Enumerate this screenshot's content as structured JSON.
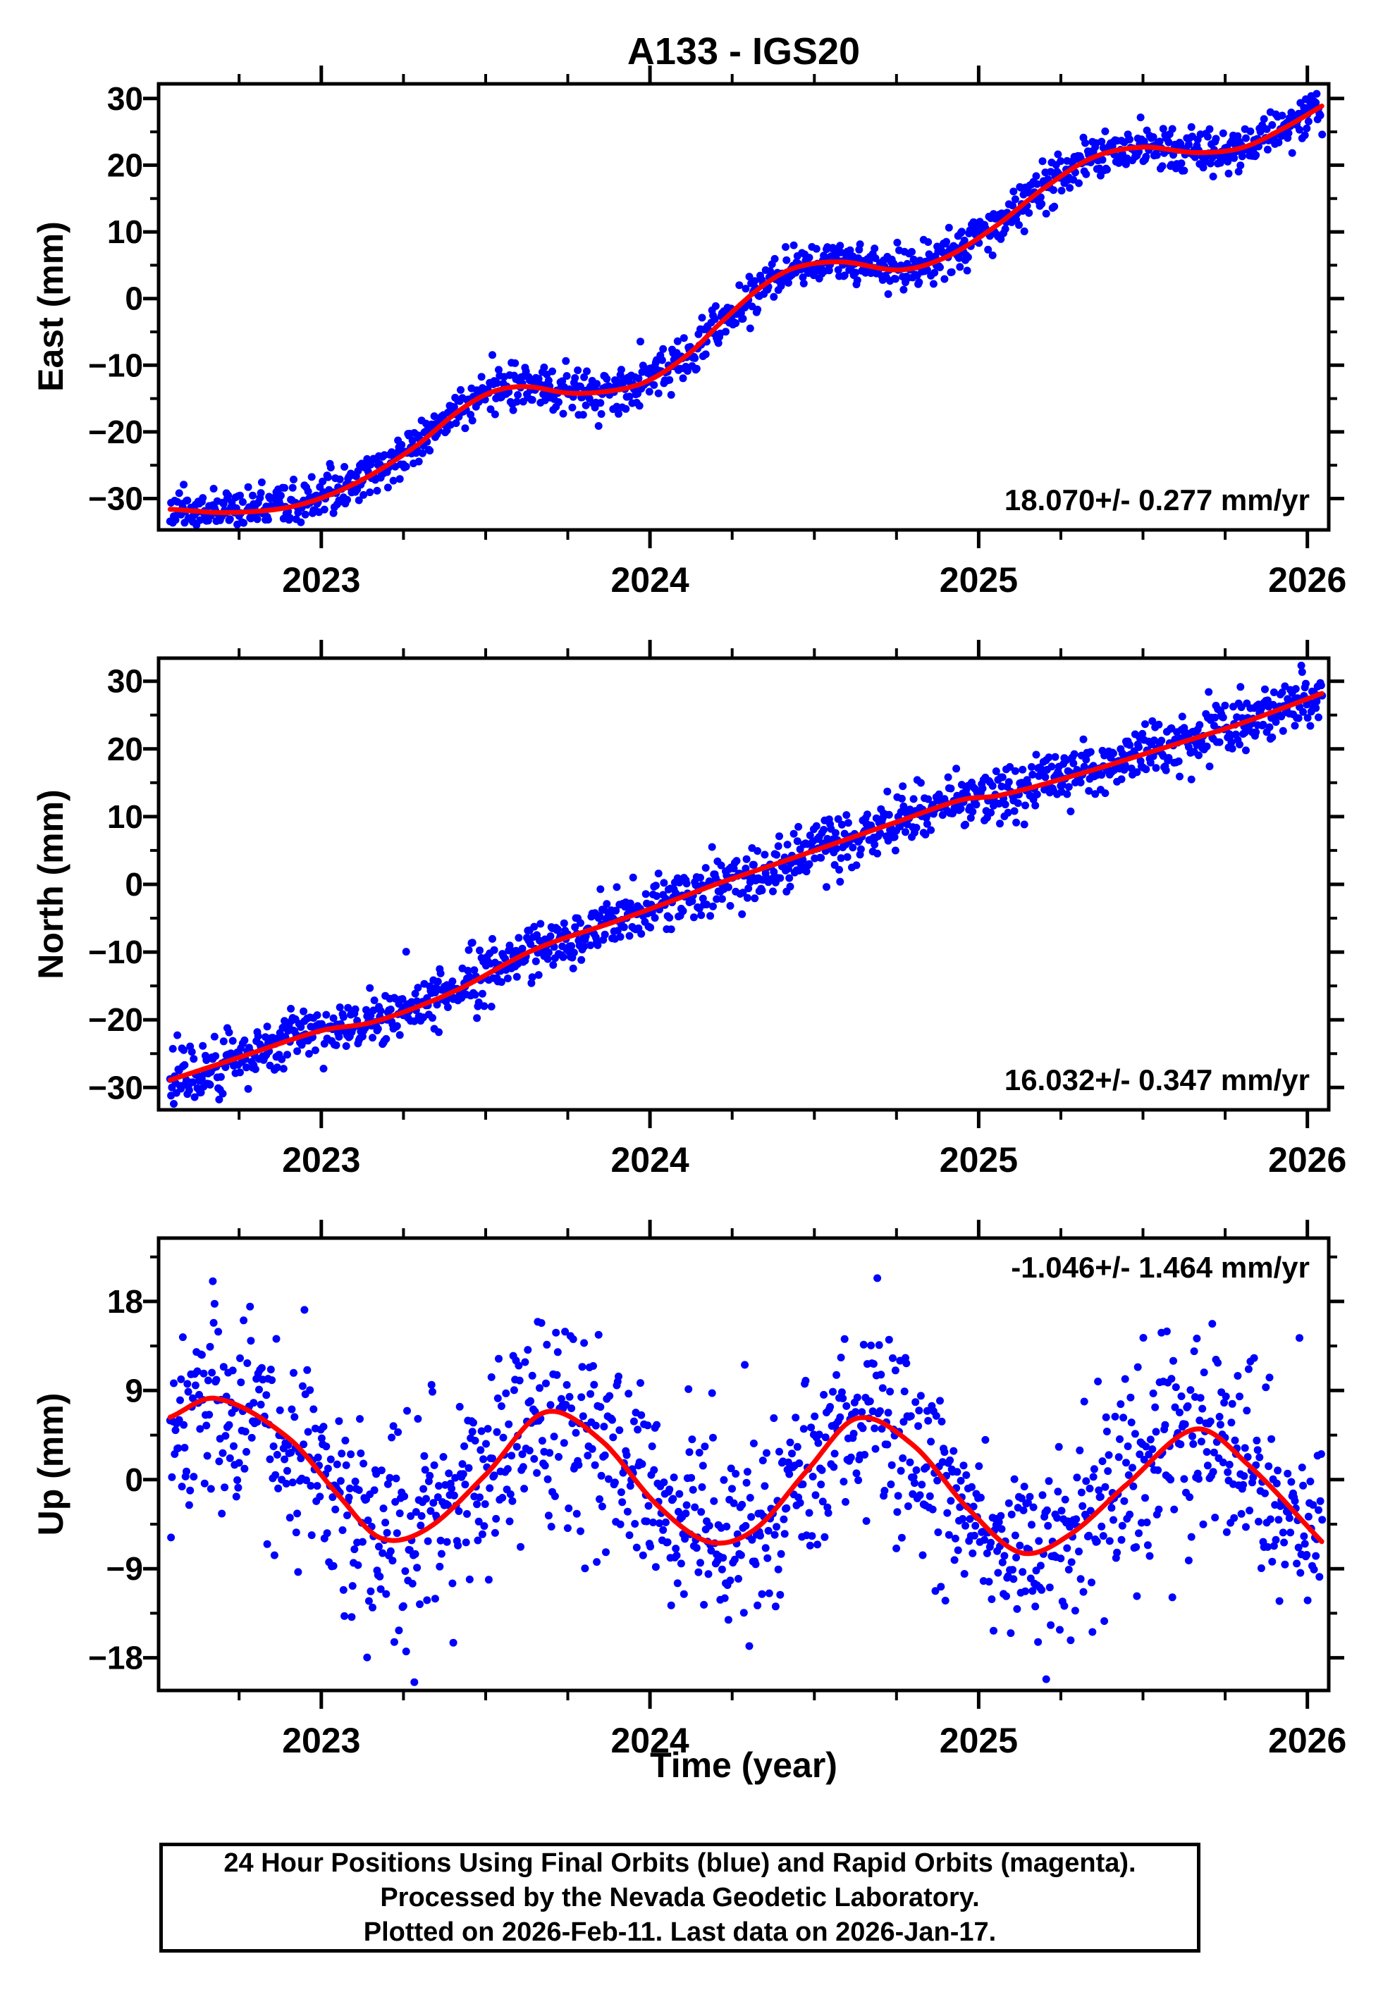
{
  "title": "A133 - IGS20",
  "xlabel": "Time (year)",
  "footer": {
    "line1": "24 Hour Positions Using Final Orbits (blue) and Rapid Orbits (magenta).",
    "line2": "Processed by the Nevada Geodetic Laboratory.",
    "line3": "Plotted on 2026-Feb-11. Last data on 2026-Jan-17."
  },
  "colors": {
    "final_orbit_points": "#0000ff",
    "rapid_orbit_points": "#ff00ff",
    "trend_line": "#ff0000",
    "frame": "#000000",
    "background": "#ffffff"
  },
  "chart_data": [
    {
      "type": "scatter",
      "ylabel": "East (mm)",
      "annotation": "18.070+/- 0.277 mm/yr",
      "annotation_pos": "bottom-right",
      "rate_mm_per_yr": 18.07,
      "rate_sigma": 0.277,
      "x_range": [
        2022.505,
        2026.065
      ],
      "y_range": [
        -34.7,
        32.2
      ],
      "yticks": [
        30,
        20,
        10,
        0,
        -10,
        -20,
        -30
      ],
      "ytick_minor_step": 5,
      "xticks": [
        2023,
        2024,
        2025,
        2026
      ],
      "xtick_minor_step": 0.25,
      "grid": false,
      "trend_knots": [
        [
          2022.54,
          -31.6
        ],
        [
          2022.72,
          -32.1
        ],
        [
          2022.92,
          -31.1
        ],
        [
          2023.1,
          -27.8
        ],
        [
          2023.28,
          -22.4
        ],
        [
          2023.42,
          -16.8
        ],
        [
          2023.52,
          -14
        ],
        [
          2023.62,
          -13.2
        ],
        [
          2023.76,
          -14.2
        ],
        [
          2023.9,
          -13.7
        ],
        [
          2024,
          -12.2
        ],
        [
          2024.12,
          -8.2
        ],
        [
          2024.22,
          -3.4
        ],
        [
          2024.34,
          1.8
        ],
        [
          2024.44,
          4.6
        ],
        [
          2024.58,
          5.5
        ],
        [
          2024.76,
          4.3
        ],
        [
          2024.9,
          6.2
        ],
        [
          2025.05,
          10.8
        ],
        [
          2025.2,
          16.6
        ],
        [
          2025.35,
          21.2
        ],
        [
          2025.5,
          22.7
        ],
        [
          2025.66,
          21.9
        ],
        [
          2025.8,
          22.6
        ],
        [
          2025.93,
          25.6
        ],
        [
          2026.045,
          28.9
        ]
      ],
      "scatter": {
        "n": 1270,
        "t_start": 2022.54,
        "t_end": 2026.045,
        "sigma": 1.6,
        "outlier_rate": 0.04,
        "outlier_span": 4.5,
        "seed": 11
      }
    },
    {
      "type": "scatter",
      "ylabel": "North (mm)",
      "annotation": "16.032+/- 0.347 mm/yr",
      "annotation_pos": "bottom-right",
      "rate_mm_per_yr": 16.032,
      "rate_sigma": 0.347,
      "x_range": [
        2022.505,
        2026.065
      ],
      "y_range": [
        -33.3,
        33.4
      ],
      "yticks": [
        30,
        20,
        10,
        0,
        -10,
        -20,
        -30
      ],
      "ytick_minor_step": 5,
      "xticks": [
        2023,
        2024,
        2025,
        2026
      ],
      "xtick_minor_step": 0.25,
      "grid": false,
      "trend_knots": [
        [
          2022.54,
          -28.9
        ],
        [
          2022.76,
          -25.4
        ],
        [
          2023,
          -21.6
        ],
        [
          2023.16,
          -20.3
        ],
        [
          2023.4,
          -15.9
        ],
        [
          2023.65,
          -9.6
        ],
        [
          2023.9,
          -5.4
        ],
        [
          2024.08,
          -2.2
        ],
        [
          2024.2,
          0
        ],
        [
          2024.4,
          3.3
        ],
        [
          2024.56,
          6
        ],
        [
          2024.75,
          9.2
        ],
        [
          2024.95,
          12.5
        ],
        [
          2025.06,
          13.1
        ],
        [
          2025.3,
          16.2
        ],
        [
          2025.54,
          19.8
        ],
        [
          2025.8,
          23.8
        ],
        [
          2026.045,
          28.2
        ]
      ],
      "scatter": {
        "n": 1270,
        "t_start": 2022.54,
        "t_end": 2026.045,
        "sigma": 2.0,
        "outlier_rate": 0.04,
        "outlier_span": 5,
        "seed": 22
      }
    },
    {
      "type": "scatter",
      "ylabel": "Up (mm)",
      "annotation": "-1.046+/- 1.464 mm/yr",
      "annotation_pos": "top-right",
      "rate_mm_per_yr": -1.046,
      "rate_sigma": 1.464,
      "x_range": [
        2022.505,
        2026.065
      ],
      "y_range": [
        -21.3,
        24.4
      ],
      "yticks": [
        18,
        9,
        0,
        -9,
        -18
      ],
      "ytick_minor_step": 4.5,
      "xticks": [
        2023,
        2024,
        2025,
        2026
      ],
      "xtick_minor_step": 0.25,
      "grid": false,
      "trend_knots": [
        [
          2022.54,
          6.3
        ],
        [
          2022.68,
          8.2
        ],
        [
          2022.9,
          4.2
        ],
        [
          2023.05,
          -1.5
        ],
        [
          2023.18,
          -5.9
        ],
        [
          2023.32,
          -5
        ],
        [
          2023.5,
          0.5
        ],
        [
          2023.68,
          6.8
        ],
        [
          2023.85,
          4
        ],
        [
          2024.02,
          -2.5
        ],
        [
          2024.18,
          -6.3
        ],
        [
          2024.32,
          -5
        ],
        [
          2024.48,
          1
        ],
        [
          2024.63,
          6.2
        ],
        [
          2024.8,
          3.5
        ],
        [
          2024.97,
          -3
        ],
        [
          2025.13,
          -7.4
        ],
        [
          2025.28,
          -5.5
        ],
        [
          2025.45,
          -0.5
        ],
        [
          2025.66,
          5.1
        ],
        [
          2025.82,
          1.5
        ],
        [
          2026.045,
          -6.3
        ]
      ],
      "scatter": {
        "n": 1270,
        "t_start": 2022.54,
        "t_end": 2026.045,
        "sigma": 4.5,
        "outlier_rate": 0.12,
        "outlier_span": 10,
        "seed": 33
      }
    }
  ]
}
